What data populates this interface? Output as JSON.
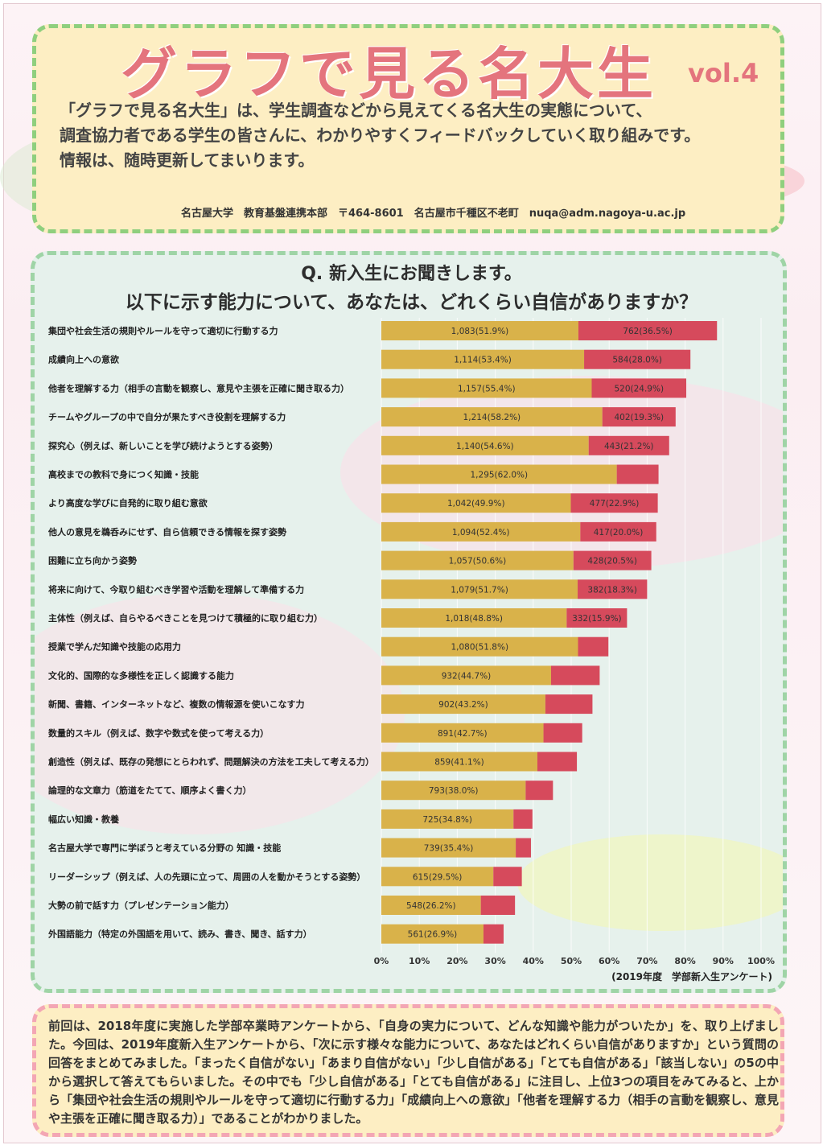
{
  "header": {
    "title": "グラフで見る名大生",
    "vol": "vol.4",
    "intro_lines": [
      "「グラフで見る名大生」は、学生調査などから見えてくる名大生の実態について、",
      "調査協力者である学生の皆さんに、わかりやすくフィードバックしていく取り組みです。",
      "情報は、随時更新してまいります。"
    ],
    "contact": "名古屋大学　教育基盤連携本部　〒464-8601　名古屋市千種区不老町　nuqa@adm.nagoya-u.ac.jp"
  },
  "question": {
    "line1": "Q. 新入生にお聞きします。",
    "line2": "以下に示す能力について、あなたは、どれくらい自信がありますか？"
  },
  "colors": {
    "some_confident": "#d9b24a",
    "very_confident": "#d64a5c",
    "title": "#e4747d"
  },
  "chart_data": {
    "type": "bar",
    "orientation": "horizontal",
    "stacked": true,
    "xlim": [
      0,
      100
    ],
    "x_ticks": [
      "0%",
      "10%",
      "20%",
      "30%",
      "40%",
      "50%",
      "60%",
      "70%",
      "80%",
      "90%",
      "100%"
    ],
    "source": "(2019年度　学部新入生アンケート)",
    "categories": [
      "集団や社会生活の規則やルールを守って適切に行動する力",
      "成績向上への意欲",
      "他者を理解する力（相手の言動を観察し、意見や主張を正確に聞き取る力）",
      "チームやグループの中で自分が果たすべき役割を理解する力",
      "探究心（例えば、新しいことを学び続けようとする姿勢）",
      "高校までの教科で身につく知識・技能",
      "より高度な学びに自発的に取り組む意欲",
      "他人の意見を鵜呑みにせず、自ら信頼できる情報を探す姿勢",
      "困難に立ち向かう姿勢",
      "将来に向けて、今取り組むべき学習や活動を理解して準備する力",
      "主体性（例えば、自らやるべきことを見つけて積極的に取り組む力）",
      "授業で学んだ知識や技能の応用力",
      "文化的、国際的な多様性を正しく認識する能力",
      "新聞、書籍、インターネットなど、複数の情報源を使いこなす力",
      "数量的スキル（例えば、数字や数式を使って考える力）",
      "創造性（例えば、既存の発想にとらわれず、問題解決の方法を工夫して考える力）",
      "論理的な文章力（筋道をたてて、順序よく書く力）",
      "幅広い知識・教養",
      "名古屋大学で専門に学ぼうと考えている分野の 知識・技能",
      "リーダーシップ（例えば、人の先頭に立って、周囲の人を動かそうとする姿勢）",
      "大勢の前で話す力（プレゼンテーション能力）",
      "外国語能力（特定の外国語を用いて、読み、書き、聞き、話す力）"
    ],
    "series": [
      {
        "values": [
          51.9,
          53.4,
          55.4,
          58.2,
          54.6,
          62.0,
          49.9,
          52.4,
          50.6,
          51.7,
          48.8,
          51.8,
          44.7,
          43.2,
          42.7,
          41.1,
          38.0,
          34.8,
          35.4,
          29.5,
          26.2,
          26.9
        ],
        "labels": [
          "1,083(51.9%)",
          "1,114(53.4%)",
          "1,157(55.4%)",
          "1,214(58.2%)",
          "1,140(54.6%)",
          "1,295(62.0%)",
          "1,042(49.9%)",
          "1,094(52.4%)",
          "1,057(50.6%)",
          "1,079(51.7%)",
          "1,018(48.8%)",
          "1,080(51.8%)",
          "932(44.7%)",
          "902(43.2%)",
          "891(42.7%)",
          "859(41.1%)",
          "793(38.0%)",
          "725(34.8%)",
          "739(35.4%)",
          "615(29.5%)",
          "548(26.2%)",
          "561(26.9%)"
        ]
      },
      {
        "values": [
          36.5,
          28.0,
          24.9,
          19.3,
          21.2,
          11.0,
          22.9,
          20.0,
          20.5,
          18.3,
          15.9,
          8.0,
          12.8,
          12.4,
          10.2,
          10.4,
          7.2,
          5.0,
          4.0,
          7.5,
          9.0,
          5.3
        ],
        "labels": [
          "762(36.5%)",
          "584(28.0%)",
          "520(24.9%)",
          "402(19.3%)",
          "443(21.2%)",
          "",
          "477(22.9%)",
          "417(20.0%)",
          "428(20.5%)",
          "382(18.3%)",
          "332(15.9%)",
          "",
          "",
          "",
          "",
          "",
          "",
          "",
          "",
          "",
          "",
          ""
        ]
      }
    ]
  },
  "footer": {
    "text": "前回は、2018年度に実施した学部卒業時アンケートから、「自身の実力について、どんな知識や能力がついたか」を、取り上げました。今回は、2019年度新入生アンケートから、「次に示す様々な能力について、あなたはどれくらい自信がありますか」という質問の回答をまとめてみました。「まったく自信がない」「あまり自信がない」「少し自信がある」「とても自信がある」「該当しない」の5の中から選択して答えてもらいました。その中でも「少し自信がある」「とても自信がある」に注目し、上位3つの項目をみてみると、上から「集団や社会生活の規則やルールを守って適切に行動する力」「成績向上への意欲」「他者を理解する力（相手の言動を観察し、意見や主張を正確に聞き取る力）」であることがわかりました。"
  }
}
